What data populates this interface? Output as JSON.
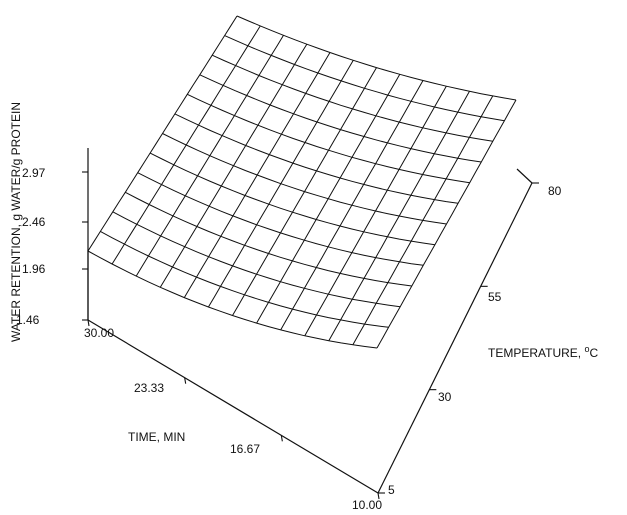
{
  "chart_data": {
    "type": "surface",
    "title": "",
    "zlabel": "WATER RETENTION, g WATER/g PROTEIN",
    "xlabel": "TIME, MIN",
    "ylabel_parts": {
      "main": "TEMPERATURE, ",
      "sup": "o",
      "unit": "C"
    },
    "z_ticks": [
      "1.46",
      "1.96",
      "2.46",
      "2.97"
    ],
    "x_ticks": [
      "30.00",
      "23.33",
      "16.67",
      "10.00"
    ],
    "y_ticks": [
      "5",
      "30",
      "55",
      "80"
    ],
    "x_range": [
      10.0,
      30.0
    ],
    "y_range": [
      5,
      80
    ],
    "z_range": [
      1.46,
      3.47
    ],
    "grid": {
      "time_lines": 12,
      "temp_lines": 12
    },
    "corner_values": [
      {
        "time": 30.0,
        "temp": 5,
        "water_retention": 2.12
      },
      {
        "time": 30.0,
        "temp": 80,
        "water_retention": 3.47
      },
      {
        "time": 10.0,
        "temp": 5,
        "water_retention": 1.68
      },
      {
        "time": 10.0,
        "temp": 80,
        "water_retention": 2.88
      }
    ]
  }
}
